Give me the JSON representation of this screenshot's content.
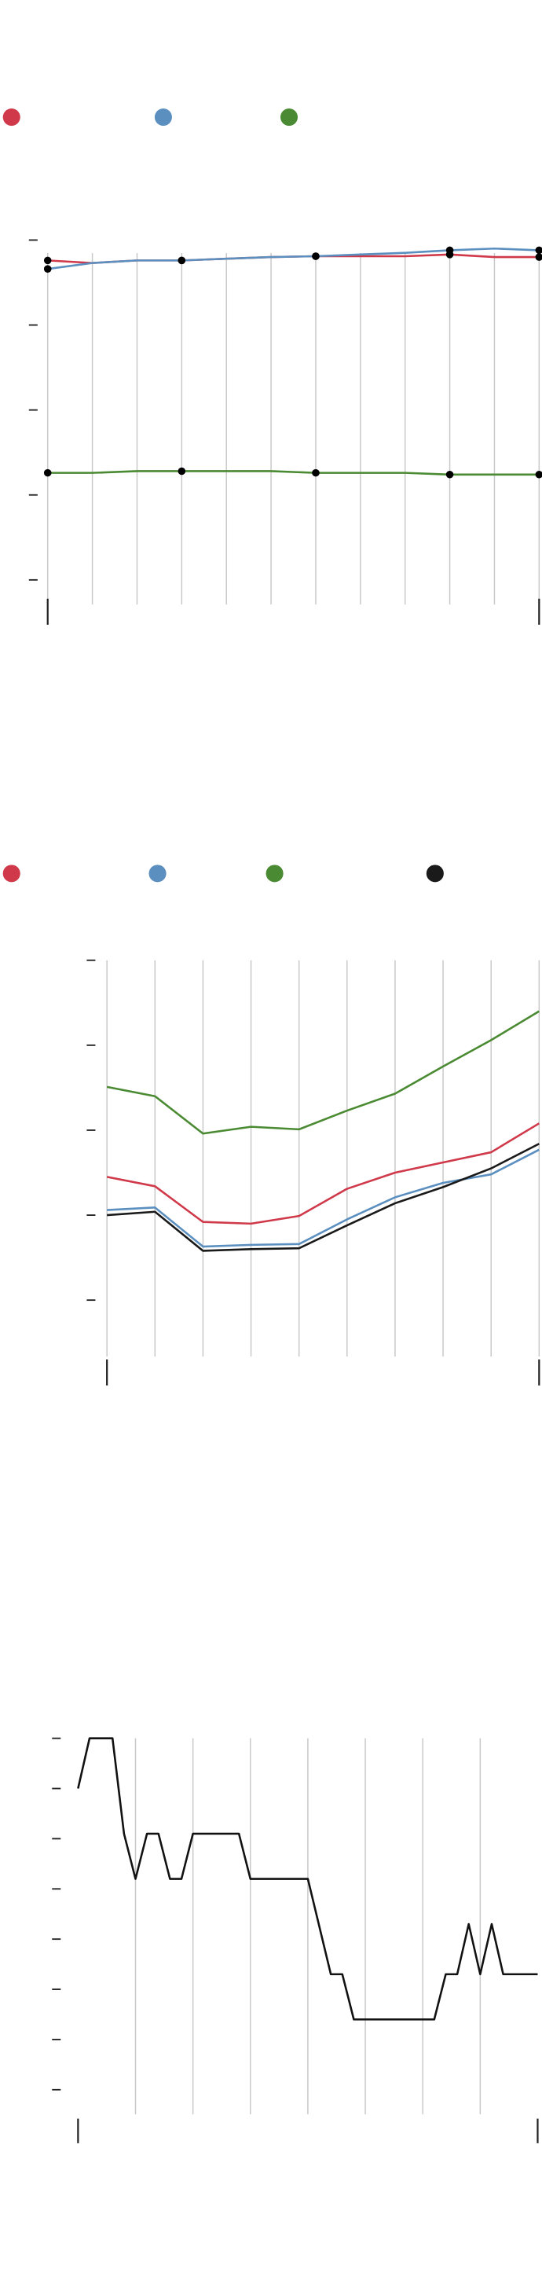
{
  "chart_data": [
    {
      "type": "line",
      "x": [
        0,
        1,
        2,
        3,
        4,
        5,
        6,
        7,
        8,
        9,
        10,
        11
      ],
      "xlim": [
        0,
        11
      ],
      "xticks": [
        0,
        1,
        2,
        3,
        4,
        5,
        6,
        7,
        8,
        9,
        10,
        11
      ],
      "ylim": [
        0,
        4
      ],
      "yticks": [
        0,
        1,
        2,
        3,
        4
      ],
      "grid": true,
      "legend": "top",
      "marker_indices": [
        0,
        3,
        6,
        9,
        11
      ],
      "series": [
        {
          "color": "#d0394a",
          "values": [
            3.76,
            3.73,
            3.76,
            3.76,
            3.78,
            3.8,
            3.81,
            3.81,
            3.81,
            3.83,
            3.8,
            3.8
          ]
        },
        {
          "color": "#5b8fbf",
          "values": [
            3.66,
            3.73,
            3.76,
            3.76,
            3.78,
            3.8,
            3.81,
            3.83,
            3.85,
            3.88,
            3.9,
            3.88
          ]
        },
        {
          "color": "#4a8a32",
          "values": [
            1.26,
            1.26,
            1.28,
            1.28,
            1.28,
            1.28,
            1.26,
            1.26,
            1.26,
            1.24,
            1.24,
            1.24
          ]
        }
      ]
    },
    {
      "type": "line",
      "x": [
        0,
        1,
        2,
        3,
        4,
        5,
        6,
        7,
        8,
        9
      ],
      "xlim": [
        0,
        9
      ],
      "xticks": [
        0,
        1,
        2,
        3,
        4,
        5,
        6,
        7,
        8,
        9
      ],
      "ylim": [
        0,
        4
      ],
      "yticks": [
        0,
        1,
        2,
        3,
        4
      ],
      "grid": true,
      "legend": "top",
      "series": [
        {
          "color": "#d0394a",
          "values": [
            1.45,
            1.34,
            0.92,
            0.9,
            0.99,
            1.31,
            1.5,
            1.62,
            1.74,
            2.08
          ]
        },
        {
          "color": "#5b8fbf",
          "values": [
            1.06,
            1.09,
            0.63,
            0.65,
            0.66,
            0.95,
            1.21,
            1.38,
            1.48,
            1.77
          ]
        },
        {
          "color": "#4a8a32",
          "values": [
            2.51,
            2.4,
            1.96,
            2.04,
            2.01,
            2.23,
            2.43,
            2.75,
            3.06,
            3.4
          ]
        },
        {
          "color": "#1a1a1a",
          "values": [
            1.0,
            1.04,
            0.58,
            0.6,
            0.61,
            0.88,
            1.14,
            1.33,
            1.55,
            1.84
          ]
        }
      ]
    },
    {
      "type": "line",
      "x": [
        0,
        1,
        3,
        4,
        5,
        6,
        7,
        8,
        9,
        10,
        14,
        15,
        20,
        22,
        23,
        24,
        31,
        32,
        33,
        34,
        35,
        36,
        37,
        40
      ],
      "xlim": [
        0,
        40
      ],
      "xticks": [
        5,
        10,
        15,
        20,
        25,
        30,
        35
      ],
      "ylim": [
        0,
        7
      ],
      "yticks": [
        0,
        1,
        2,
        3,
        4,
        5,
        6,
        7
      ],
      "grid": true,
      "color": "#111111",
      "values": [
        6.0,
        7.0,
        7.0,
        5.1,
        4.2,
        5.1,
        5.1,
        4.2,
        4.2,
        5.1,
        5.1,
        4.2,
        4.2,
        2.3,
        2.3,
        1.4,
        1.4,
        2.3,
        2.3,
        3.3,
        2.3,
        3.3,
        2.3,
        2.3
      ]
    }
  ]
}
